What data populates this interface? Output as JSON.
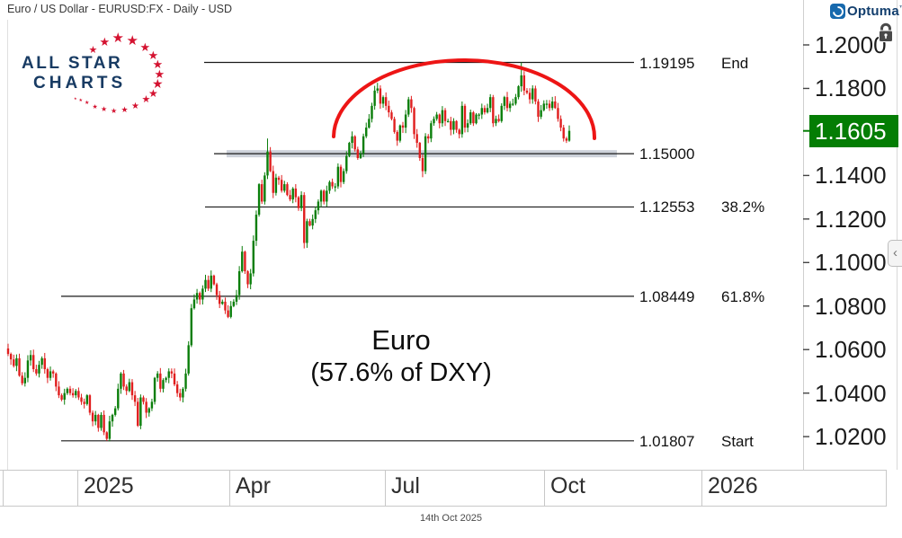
{
  "header": {
    "title": "Euro / US Dollar - EURUSD:FX - Daily - USD"
  },
  "branding": {
    "optuma": {
      "name": "Optuma",
      "trademark": "™"
    },
    "allstar": {
      "line1": "ALL STAR",
      "line2": "CHARTS",
      "star_glyph": "★",
      "text_color": "#183b63",
      "star_color": "#d41230"
    }
  },
  "chart_data": {
    "type": "candlestick",
    "title": "Euro / US Dollar",
    "symbol": "EURUSD:FX",
    "timeframe": "Daily",
    "currency": "USD",
    "x_axis": {
      "labels": [
        "2025",
        "Apr",
        "Jul",
        "Oct",
        "2026"
      ]
    },
    "y_axis": {
      "ticks": [
        "1.2000",
        "1.1800",
        "1.1400",
        "1.1200",
        "1.1000",
        "1.0800",
        "1.0600",
        "1.0400",
        "1.0200"
      ],
      "tick_prices": [
        1.2,
        1.18,
        1.14,
        1.12,
        1.1,
        1.08,
        1.06,
        1.04,
        1.02
      ],
      "range": [
        1.005,
        1.208
      ]
    },
    "current_price": "1.1605",
    "current_price_value": 1.1605,
    "closes": [
      1.058,
      1.0555,
      1.0525,
      1.056,
      1.048,
      1.0445,
      1.047,
      1.055,
      1.0575,
      1.051,
      1.049,
      1.053,
      1.056,
      1.051,
      1.047,
      1.05,
      1.049,
      1.043,
      1.039,
      1.037,
      1.04,
      1.042,
      1.04,
      1.039,
      1.041,
      1.038,
      1.036,
      1.035,
      1.039,
      1.031,
      1.027,
      1.03,
      1.024,
      1.03,
      1.022,
      1.019,
      1.027,
      1.03,
      1.033,
      1.042,
      1.049,
      1.043,
      1.041,
      1.045,
      1.039,
      1.036,
      1.025,
      1.038,
      1.036,
      1.031,
      1.033,
      1.036,
      1.047,
      1.049,
      1.042,
      1.046,
      1.047,
      1.05,
      1.049,
      1.044,
      1.04,
      1.038,
      1.042,
      1.049,
      1.062,
      1.079,
      1.083,
      1.086,
      1.083,
      1.088,
      1.092,
      1.088,
      1.094,
      1.09,
      1.085,
      1.081,
      1.082,
      1.078,
      1.075,
      1.08,
      1.082,
      1.085,
      1.096,
      1.105,
      1.096,
      1.09,
      1.095,
      1.11,
      1.122,
      1.136,
      1.128,
      1.14,
      1.151,
      1.142,
      1.132,
      1.139,
      1.138,
      1.133,
      1.136,
      1.131,
      1.129,
      1.134,
      1.13,
      1.125,
      1.131,
      1.109,
      1.119,
      1.117,
      1.12,
      1.124,
      1.128,
      1.133,
      1.128,
      1.133,
      1.137,
      1.135,
      1.135,
      1.144,
      1.137,
      1.142,
      1.149,
      1.155,
      1.158,
      1.152,
      1.148,
      1.15,
      1.158,
      1.162,
      1.166,
      1.172,
      1.179,
      1.18,
      1.173,
      1.176,
      1.172,
      1.169,
      1.166,
      1.16,
      1.156,
      1.163,
      1.162,
      1.168,
      1.175,
      1.171,
      1.159,
      1.155,
      1.148,
      1.142,
      1.158,
      1.157,
      1.164,
      1.166,
      1.168,
      1.164,
      1.17,
      1.165,
      1.165,
      1.161,
      1.165,
      1.161,
      1.159,
      1.172,
      1.162,
      1.164,
      1.169,
      1.164,
      1.168,
      1.168,
      1.171,
      1.169,
      1.171,
      1.176,
      1.164,
      1.166,
      1.165,
      1.172,
      1.176,
      1.171,
      1.173,
      1.173,
      1.176,
      1.181,
      1.186,
      1.179,
      1.178,
      1.175,
      1.18,
      1.174,
      1.167,
      1.17,
      1.173,
      1.173,
      1.171,
      1.174,
      1.171,
      1.166,
      1.162,
      1.157,
      1.156,
      1.1605
    ],
    "wick_overrides": {
      "35": {
        "low": 1.01807
      },
      "92": {
        "high": 1.157
      },
      "105": {
        "low": 1.1065
      },
      "147": {
        "low": 1.1392
      },
      "182": {
        "high": 1.19195
      },
      "199": {
        "high": 1.163,
        "low": 1.1555
      }
    },
    "fib_levels": [
      {
        "price": 1.19195,
        "value": "1.19195",
        "tag": "End"
      },
      {
        "price": 1.15,
        "value": "1.15000",
        "tag": ""
      },
      {
        "price": 1.12553,
        "value": "1.12553",
        "tag": "38.2%"
      },
      {
        "price": 1.08449,
        "value": "1.08449",
        "tag": "61.8%"
      },
      {
        "price": 1.01807,
        "value": "1.01807",
        "tag": "Start"
      }
    ],
    "annotations": {
      "arc": {
        "type": "rounding-top",
        "color": "#ed1515"
      },
      "text": {
        "line1": "Euro",
        "line2": "(57.6% of DXY)"
      },
      "support_band": {
        "price": 1.15,
        "color": "#c4cad3"
      }
    },
    "colors": {
      "up": "#0a7e0a",
      "down": "#e01e1e",
      "current_badge": "#047d04"
    }
  },
  "axis_controls": {
    "collapse_chevron": "‹",
    "lock_icon": "lock-icon"
  },
  "footer": {
    "date": "14th Oct 2025"
  }
}
